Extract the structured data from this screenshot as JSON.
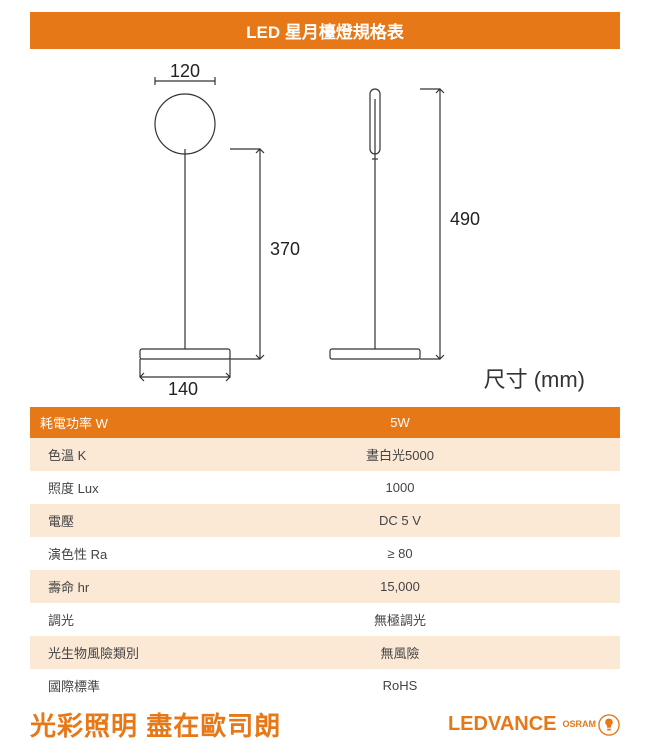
{
  "title": "LED 星月檯燈規格表",
  "dimensions": {
    "head_width": "120",
    "base_width": "140",
    "short_height": "370",
    "tall_height": "490",
    "unit_label": "尺寸 (mm)"
  },
  "table": {
    "header_label": "耗電功率 W",
    "header_value": "5W",
    "rows": [
      {
        "label": "色溫 K",
        "value": "晝白光5000",
        "alt": true
      },
      {
        "label": "照度 Lux",
        "value": "1000",
        "alt": false
      },
      {
        "label": "電壓",
        "value": "DC 5 V",
        "alt": true
      },
      {
        "label": "演色性 Ra",
        "value": "≥ 80",
        "alt": false
      },
      {
        "label": "壽命 hr",
        "value": "15,000",
        "alt": true
      },
      {
        "label": "調光",
        "value": "無極調光",
        "alt": false
      },
      {
        "label": "光生物風險類別",
        "value": "無風險",
        "alt": true
      },
      {
        "label": "國際標準",
        "value": "RoHS",
        "alt": false
      }
    ]
  },
  "footer": {
    "slogan": "光彩照明 盡在歐司朗",
    "brand": "LEDVANCE",
    "sub_brand": "OSRAM"
  },
  "colors": {
    "accent": "#e67817",
    "row_alt_bg": "#fbe8d5",
    "text": "#444444",
    "line": "#333333"
  }
}
